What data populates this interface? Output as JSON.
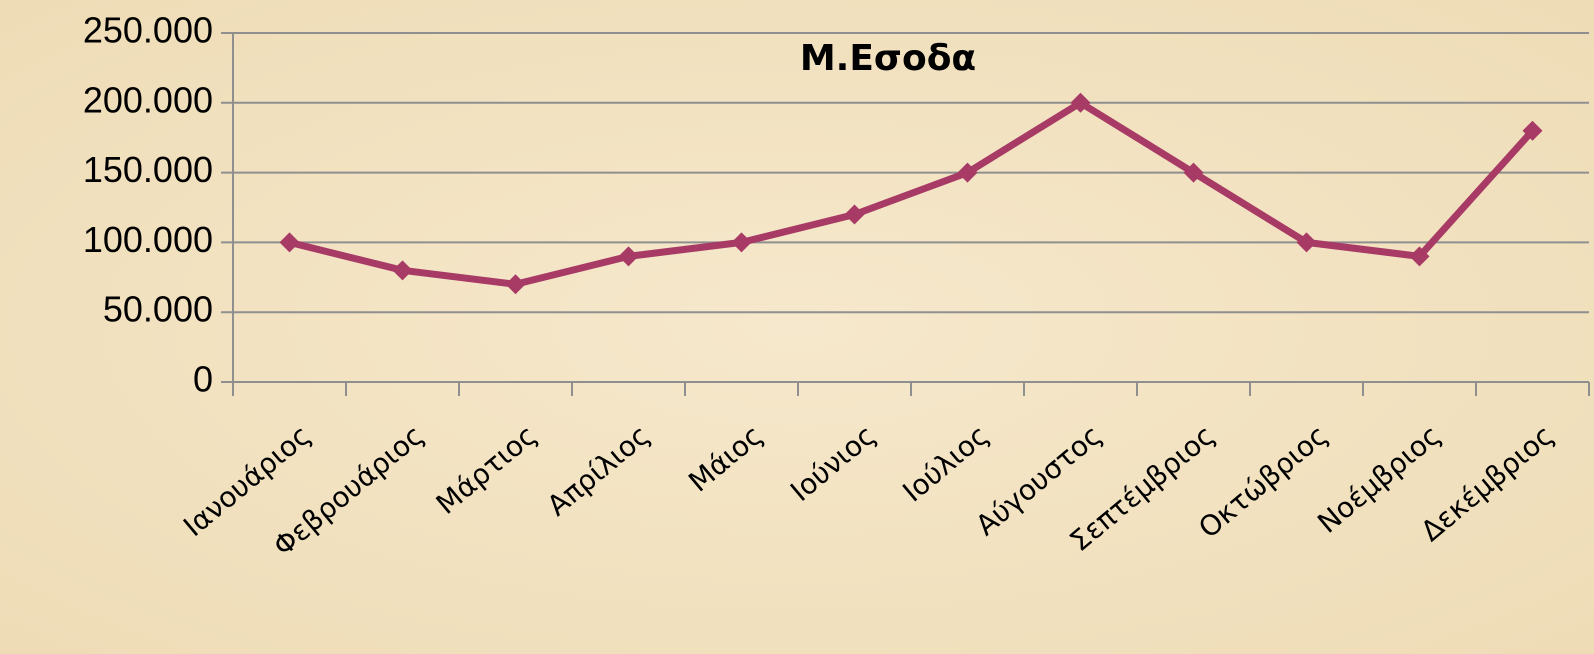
{
  "chart_data": {
    "type": "line",
    "title": "Μ.Εσοδα",
    "categories": [
      "Ιανουάριος",
      "Φεβρουάριος",
      "Μάρτιος",
      "Απρίλιος",
      "Μάιος",
      "Ιούνιος",
      "Ιούλιος",
      "Αύγουστος",
      "Σεπτέμβριος",
      "Οκτώβριος",
      "Νοέμβριος",
      "Δεκέμβριος"
    ],
    "values": [
      100000,
      80000,
      70000,
      90000,
      100000,
      120000,
      150000,
      200000,
      150000,
      100000,
      90000,
      180000
    ],
    "color": "#a83a66",
    "ylim": [
      0,
      250000
    ],
    "yticks": [
      0,
      {
        "value": 50000,
        "label": "50.000"
      },
      {
        "value": 100000,
        "label": "100.000"
      },
      {
        "value": 150000,
        "label": "150.000"
      },
      {
        "value": 200000,
        "label": "200.000"
      },
      {
        "value": 250000,
        "label": "250.000"
      }
    ],
    "grid": true
  }
}
